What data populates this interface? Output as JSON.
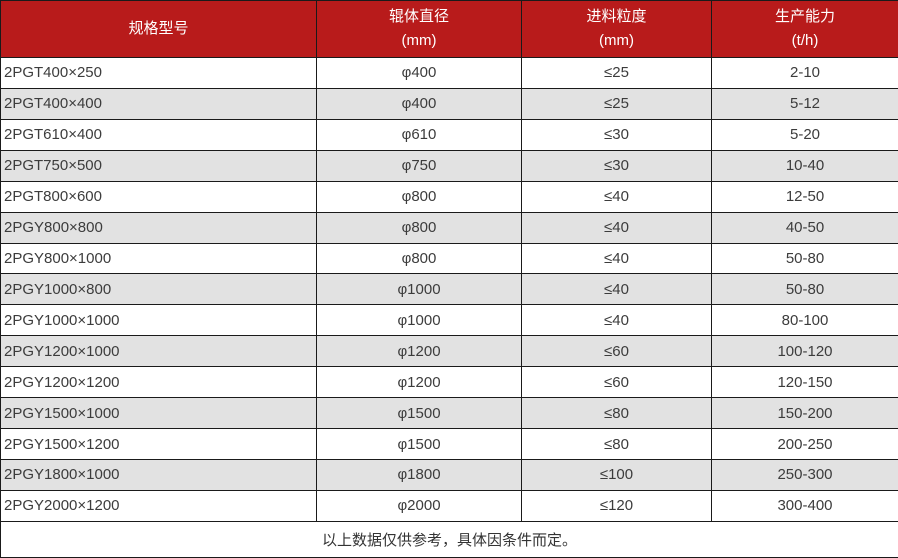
{
  "chart_data": {
    "type": "table",
    "title": "",
    "columns": [
      {
        "label": "规格型号",
        "unit": ""
      },
      {
        "label": "辊体直径",
        "unit": "(mm)"
      },
      {
        "label": "进料粒度",
        "unit": "(mm)"
      },
      {
        "label": "生产能力",
        "unit": "(t/h)"
      }
    ],
    "rows": [
      {
        "model": "2PGT400×250",
        "roller_diameter": "φ400",
        "feed_size": "≤25",
        "capacity": "2-10"
      },
      {
        "model": "2PGT400×400",
        "roller_diameter": "φ400",
        "feed_size": "≤25",
        "capacity": "5-12"
      },
      {
        "model": "2PGT610×400",
        "roller_diameter": "φ610",
        "feed_size": "≤30",
        "capacity": "5-20"
      },
      {
        "model": "2PGT750×500",
        "roller_diameter": "φ750",
        "feed_size": "≤30",
        "capacity": "10-40"
      },
      {
        "model": "2PGT800×600",
        "roller_diameter": "φ800",
        "feed_size": "≤40",
        "capacity": "12-50"
      },
      {
        "model": "2PGY800×800",
        "roller_diameter": "φ800",
        "feed_size": "≤40",
        "capacity": "40-50"
      },
      {
        "model": "2PGY800×1000",
        "roller_diameter": "φ800",
        "feed_size": "≤40",
        "capacity": "50-80"
      },
      {
        "model": "2PGY1000×800",
        "roller_diameter": "φ1000",
        "feed_size": "≤40",
        "capacity": "50-80"
      },
      {
        "model": "2PGY1000×1000",
        "roller_diameter": "φ1000",
        "feed_size": "≤40",
        "capacity": "80-100"
      },
      {
        "model": "2PGY1200×1000",
        "roller_diameter": "φ1200",
        "feed_size": "≤60",
        "capacity": "100-120"
      },
      {
        "model": "2PGY1200×1200",
        "roller_diameter": "φ1200",
        "feed_size": "≤60",
        "capacity": "120-150"
      },
      {
        "model": "2PGY1500×1000",
        "roller_diameter": "φ1500",
        "feed_size": "≤80",
        "capacity": "150-200"
      },
      {
        "model": "2PGY1500×1200",
        "roller_diameter": "φ1500",
        "feed_size": "≤80",
        "capacity": "200-250"
      },
      {
        "model": "2PGY1800×1000",
        "roller_diameter": "φ1800",
        "feed_size": "≤100",
        "capacity": "250-300"
      },
      {
        "model": "2PGY2000×1200",
        "roller_diameter": "φ2000",
        "feed_size": "≤120",
        "capacity": "300-400"
      }
    ],
    "footnote": "以上数据仅供参考，具体因条件而定。"
  },
  "colors": {
    "header_bg": "#b81b1b",
    "header_text": "#ffffff",
    "row_alt_bg": "#e2e2e2",
    "border": "#1a1a1a",
    "body_text": "#3c3c3c"
  }
}
